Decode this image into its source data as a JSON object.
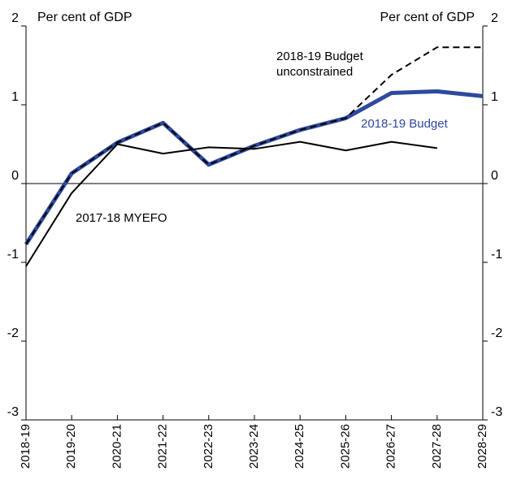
{
  "chart_data": {
    "type": "line",
    "y_label": "Per cent of GDP",
    "y2_label": "Per cent of GDP",
    "categories": [
      "2018-19",
      "2019-20",
      "2020-21",
      "2021-22",
      "2022-23",
      "2023-24",
      "2024-25",
      "2025-26",
      "2026-27",
      "2027-28",
      "2028-29"
    ],
    "series": [
      {
        "name": "2018-19 Budget",
        "color": "#2e4a9e",
        "values": [
          -0.77,
          0.13,
          0.52,
          0.77,
          0.24,
          0.48,
          0.68,
          0.83,
          1.15,
          1.17,
          1.11
        ]
      },
      {
        "name": "2018-19 Budget unconstrained",
        "color": "#000000",
        "values": [
          -0.77,
          0.13,
          0.52,
          0.77,
          0.24,
          0.48,
          0.68,
          0.83,
          1.38,
          1.73,
          1.73
        ]
      },
      {
        "name": "2017-18 MYEFO",
        "color": "#000000",
        "values": [
          -1.05,
          -0.12,
          0.5,
          0.38,
          0.46,
          0.44,
          0.53,
          0.42,
          0.53,
          0.45,
          null
        ]
      }
    ],
    "ylim": [
      -3,
      2
    ],
    "yticks": [
      -3,
      -2,
      -1,
      0,
      1,
      2
    ],
    "y2lim": [
      -3,
      2
    ],
    "y2ticks": [
      -3,
      -2,
      -1,
      0,
      1,
      2
    ]
  }
}
